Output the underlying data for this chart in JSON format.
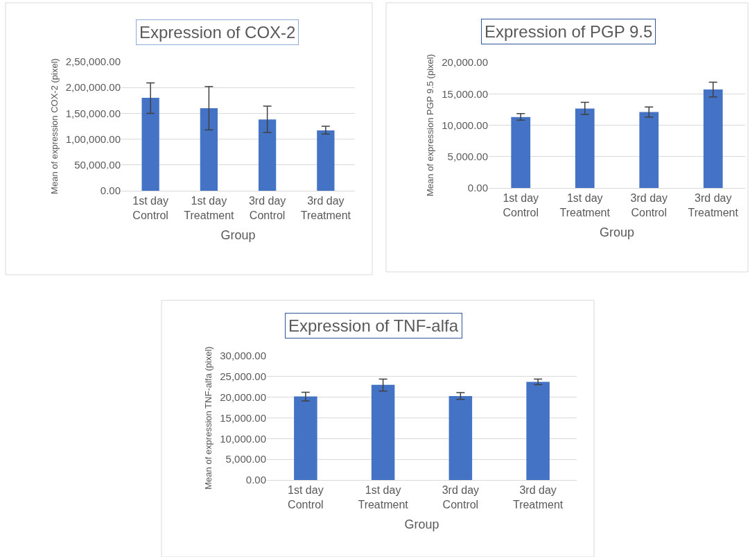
{
  "chart_data": [
    {
      "type": "bar",
      "title": "Expression of COX-2",
      "xlabel": "Group",
      "ylabel": "Mean of expression COX-2 (pixel)",
      "categories": [
        "1st day Control",
        "1st day Treatment",
        "3rd day Control",
        "3rd day Treatment"
      ],
      "color": "#4472c4",
      "values": [
        180000,
        160000,
        138000,
        117000
      ],
      "errors": [
        [
          150000,
          209000
        ],
        [
          118000,
          202000
        ],
        [
          113000,
          164000
        ],
        [
          110000,
          125000
        ]
      ],
      "ylim": [
        0,
        250000
      ],
      "yticks": [
        {
          "value": 0,
          "label": "0.00"
        },
        {
          "value": 50000,
          "label": "50,000.00"
        },
        {
          "value": 100000,
          "label": "1,00,000.00"
        },
        {
          "value": 150000,
          "label": "1,50,000.00"
        },
        {
          "value": 200000,
          "label": "2,00,000.00"
        },
        {
          "value": 250000,
          "label": "2,50,000.00"
        }
      ],
      "grid": "y"
    },
    {
      "type": "bar",
      "title": "Expression of PGP 9.5",
      "xlabel": "Group",
      "ylabel": "Mean of expression PGP 9.5 (pixel)",
      "categories": [
        "1st day Control",
        "1st day Treatment",
        "3rd day Control",
        "3rd day Treatment"
      ],
      "color": "#4472c4",
      "values": [
        11300,
        12650,
        12100,
        15700
      ],
      "errors": [
        [
          10800,
          11850
        ],
        [
          11700,
          13650
        ],
        [
          11300,
          12900
        ],
        [
          14500,
          16850
        ]
      ],
      "ylim": [
        0,
        20000
      ],
      "yticks": [
        {
          "value": 0,
          "label": "0.00"
        },
        {
          "value": 5000,
          "label": "5,000.00"
        },
        {
          "value": 10000,
          "label": "10,000.00"
        },
        {
          "value": 15000,
          "label": "15,000.00"
        },
        {
          "value": 20000,
          "label": "20,000.00"
        }
      ],
      "grid": "y"
    },
    {
      "type": "bar",
      "title": "Expression of TNF-alfa",
      "xlabel": "Group",
      "ylabel": "Mean of expression TNF-alfa (pixel)",
      "categories": [
        "1st day Control",
        "1st day Treatment",
        "3rd day Control",
        "3rd day Treatment"
      ],
      "color": "#4472c4",
      "values": [
        20200,
        23000,
        20300,
        23700
      ],
      "errors": [
        [
          19100,
          21200
        ],
        [
          21500,
          24400
        ],
        [
          19500,
          21100
        ],
        [
          23050,
          24400
        ]
      ],
      "ylim": [
        0,
        30000
      ],
      "yticks": [
        {
          "value": 0,
          "label": "0.00"
        },
        {
          "value": 5000,
          "label": "5,000.00"
        },
        {
          "value": 10000,
          "label": "10,000.00"
        },
        {
          "value": 15000,
          "label": "15,000.00"
        },
        {
          "value": 20000,
          "label": "20,000.00"
        },
        {
          "value": 25000,
          "label": "25,000.00"
        },
        {
          "value": 30000,
          "label": "30,000.00"
        }
      ],
      "grid": "y"
    }
  ]
}
